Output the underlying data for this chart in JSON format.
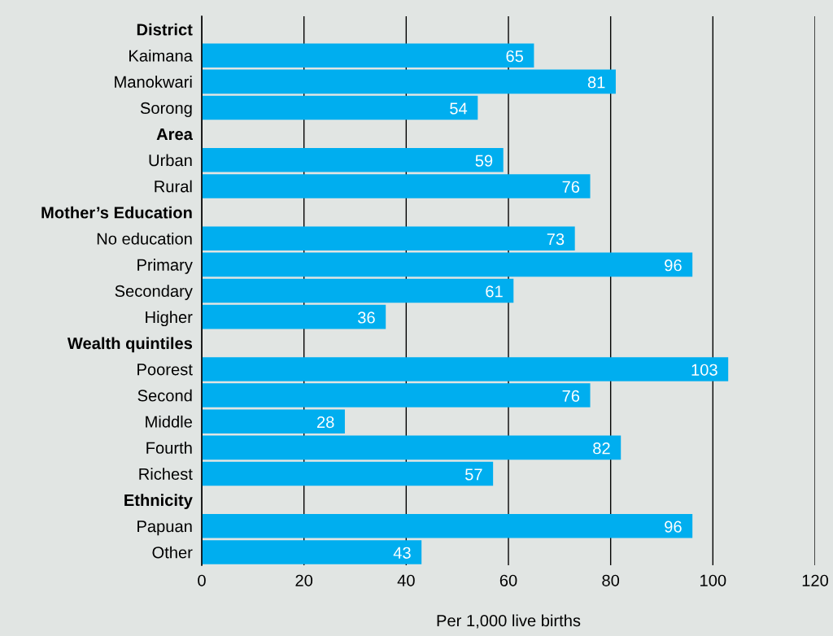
{
  "chart_data": {
    "type": "bar",
    "orientation": "horizontal",
    "xlabel": "Per 1,000 live births",
    "categories": [
      "District",
      "Kaimana",
      "Manokwari",
      "Sorong",
      "Area",
      "Urban",
      "Rural",
      "Mother’s Education",
      "No education",
      "Primary",
      "Secondary",
      "Higher",
      "Wealth quintiles",
      "Poorest",
      "Second",
      "Middle",
      "Fourth",
      "Richest",
      "Ethnicity",
      "Papuan",
      "Other"
    ],
    "values": [
      null,
      65,
      81,
      54,
      null,
      59,
      76,
      null,
      73,
      96,
      61,
      36,
      null,
      103,
      76,
      28,
      82,
      57,
      null,
      96,
      43
    ],
    "color": "#00aeef",
    "xlim": [
      0,
      120
    ],
    "xticks": [
      0,
      20,
      40,
      60,
      80,
      100,
      120
    ],
    "grid": "x",
    "data_labels": true
  }
}
